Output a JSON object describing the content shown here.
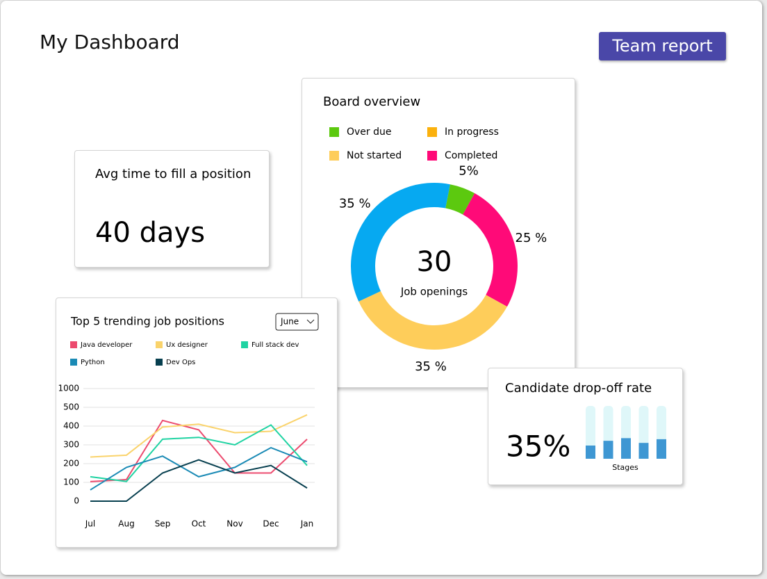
{
  "header": {
    "title": "My Dashboard",
    "button": "Team report"
  },
  "avg_card": {
    "title": "Avg time to fill a position",
    "value": "40 days"
  },
  "board_card": {
    "title": "Board overview",
    "legend": [
      {
        "name": "Over due",
        "color": "#5cc90f"
      },
      {
        "name": "In progress",
        "color": "#fbb10d"
      },
      {
        "name": "Not started",
        "color": "#fecd5a"
      },
      {
        "name": "Completed",
        "color": "#ff0a78"
      }
    ],
    "chart_data": {
      "type": "donut",
      "center_value": "30",
      "center_label": "Job openings",
      "values": [
        5,
        25,
        35,
        35
      ],
      "value_labels": [
        "5%",
        "25 %",
        "35 %",
        "35 %"
      ],
      "colors": [
        "#5cc90f",
        "#ff0a78",
        "#fecd5a",
        "#06a9f1"
      ]
    }
  },
  "trend_card": {
    "title": "Top 5 trending job positions",
    "dropdown": "June",
    "chart_data": {
      "type": "line",
      "categories": [
        "Jul",
        "Aug",
        "Sep",
        "Oct",
        "Nov",
        "Dec",
        "Jan"
      ],
      "ylim": [
        0,
        1000
      ],
      "yticks": [
        0,
        100,
        200,
        300,
        400,
        500,
        1000
      ],
      "grid": true,
      "series": [
        {
          "name": "Java developer",
          "color": "#ec4a6e",
          "values": [
            104,
            115,
            430,
            380,
            150,
            150,
            330
          ]
        },
        {
          "name": "Ux designer",
          "color": "#fad36b",
          "values": [
            235,
            245,
            395,
            410,
            365,
            372,
            460
          ]
        },
        {
          "name": "Full stack dev",
          "color": "#1fd3a2",
          "values": [
            130,
            105,
            330,
            340,
            300,
            406,
            190
          ]
        },
        {
          "name": "Python",
          "color": "#1a8ab5",
          "values": [
            60,
            180,
            240,
            130,
            180,
            285,
            210
          ]
        },
        {
          "name": "Dev Ops",
          "color": "#073f4f",
          "values": [
            0,
            0,
            150,
            220,
            150,
            190,
            70
          ]
        }
      ]
    }
  },
  "dropoff_card": {
    "title": "Candidate drop-off rate",
    "value": "35%",
    "chart_data": {
      "type": "bar",
      "xlabel": "Stages",
      "values": [
        25,
        34,
        39,
        30,
        37
      ],
      "ylim": [
        0,
        100
      ],
      "color": "#3e97d3",
      "track_color": "#dff7f9"
    }
  }
}
